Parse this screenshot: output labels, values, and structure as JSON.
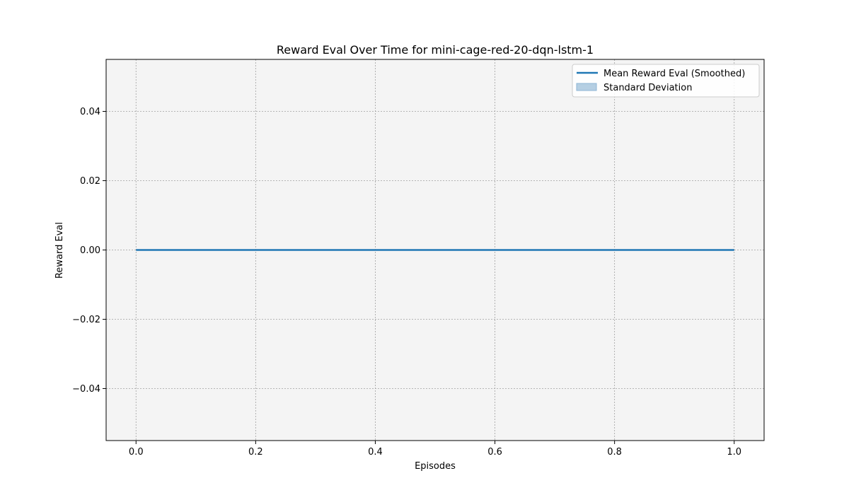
{
  "chart_data": {
    "type": "line",
    "title": "Reward Eval Over Time for mini-cage-red-20-dqn-lstm-1",
    "xlabel": "Episodes",
    "ylabel": "Reward Eval",
    "xlim": [
      -0.05,
      1.05
    ],
    "ylim": [
      -0.055,
      0.055
    ],
    "x_ticks": [
      0.0,
      0.2,
      0.4,
      0.6,
      0.8,
      1.0
    ],
    "x_tick_labels": [
      "0.0",
      "0.2",
      "0.4",
      "0.6",
      "0.8",
      "1.0"
    ],
    "y_ticks": [
      0.04,
      0.02,
      0.0,
      -0.02,
      -0.04
    ],
    "y_tick_labels": [
      "0.04",
      "0.02",
      "0.00",
      "−0.02",
      "−0.04"
    ],
    "grid": true,
    "legend_position": "top-right",
    "series": [
      {
        "name": "Mean Reward Eval (Smoothed)",
        "x": [
          0.0,
          1.0
        ],
        "values": [
          0.0,
          0.0
        ],
        "color": "#1f77b4"
      }
    ],
    "band": {
      "name": "Standard Deviation",
      "x": [
        0.0,
        1.0
      ],
      "lower": [
        0.0,
        0.0
      ],
      "upper": [
        0.0,
        0.0
      ],
      "color": "#1f77b4"
    },
    "colors": {
      "plot_background": "#f4f4f4",
      "grid": "#a0a0a0",
      "line": "#1f77b4",
      "band_fill": "#b5cfe3"
    }
  }
}
